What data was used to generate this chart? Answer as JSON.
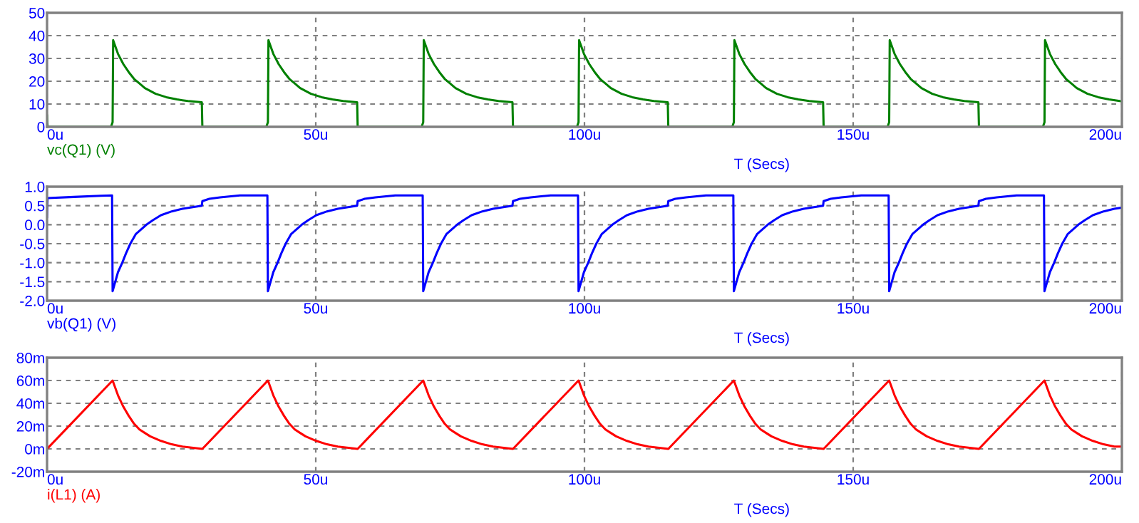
{
  "chart_data": [
    {
      "type": "line",
      "xlabel": "T (Secs)",
      "xlim": [
        0,
        200
      ],
      "xticks": [
        {
          "value": 0,
          "label": "0u"
        },
        {
          "value": 50,
          "label": "50u"
        },
        {
          "value": 100,
          "label": "100u"
        },
        {
          "value": 150,
          "label": "150u"
        },
        {
          "value": 200,
          "label": "200u"
        }
      ],
      "ylim": [
        0,
        50
      ],
      "yticks": [
        0,
        10,
        20,
        30,
        40,
        50
      ],
      "grid": true,
      "series": [
        {
          "name": "vc(Q1) (V)",
          "color": "#008000",
          "x": [
            0,
            0.1,
            11.9,
            12.2,
            12.3,
            13.2,
            14.2,
            15.2,
            16.2,
            17.2,
            18.2,
            20.2,
            22.2,
            24.2,
            26.2,
            28.8,
            28.9,
            40.8,
            41.1,
            41.2,
            42.1,
            43.1,
            44.1,
            45.1,
            46.1,
            47.1,
            49.1,
            51.1,
            53.1,
            55.1,
            57.7,
            57.8,
            69.7,
            70.0,
            70.1,
            71.0,
            72.0,
            73.0,
            74.0,
            75.0,
            76.0,
            78.0,
            80.0,
            82.0,
            84.0,
            86.6,
            86.7,
            98.6,
            98.9,
            99.0,
            99.9,
            100.9,
            101.9,
            102.9,
            103.9,
            104.9,
            106.9,
            108.9,
            110.9,
            112.9,
            115.5,
            115.6,
            127.5,
            127.8,
            127.9,
            128.8,
            129.8,
            130.8,
            131.8,
            132.8,
            133.8,
            135.8,
            137.8,
            139.8,
            141.8,
            144.4,
            144.5,
            156.4,
            156.7,
            156.8,
            157.7,
            158.7,
            159.7,
            160.7,
            161.7,
            162.7,
            164.7,
            166.7,
            168.7,
            170.7,
            173.3,
            173.4,
            185.3,
            185.6,
            185.7,
            186.6,
            187.6,
            188.6,
            189.6,
            190.6,
            191.6,
            193.6,
            195.6,
            197.6,
            199.6,
            200
          ],
          "values": [
            5,
            0,
            0,
            2,
            38,
            32,
            27.5,
            24,
            21,
            19,
            17,
            14.5,
            13,
            12,
            11.3,
            10.8,
            0,
            0,
            2,
            38,
            32,
            27.5,
            24,
            21,
            19,
            17,
            14.5,
            13,
            12,
            11.3,
            10.8,
            0,
            0,
            2,
            38,
            32,
            27.5,
            24,
            21,
            19,
            17,
            14.5,
            13,
            12,
            11.3,
            10.8,
            0,
            0,
            2,
            38,
            32,
            27.5,
            24,
            21,
            19,
            17,
            14.5,
            13,
            12,
            11.3,
            10.8,
            0,
            0,
            2,
            38,
            32,
            27.5,
            24,
            21,
            19,
            17,
            14.5,
            13,
            12,
            11.3,
            10.8,
            0,
            0,
            2,
            38,
            32,
            27.5,
            24,
            21,
            19,
            17,
            14.5,
            13,
            12,
            11.3,
            10.8,
            0,
            0,
            2,
            38,
            32,
            27.5,
            24,
            21,
            19,
            17,
            14.5,
            13,
            12,
            11.3,
            11.2
          ]
        }
      ]
    },
    {
      "type": "line",
      "xlabel": "T (Secs)",
      "xlim": [
        0,
        200
      ],
      "xticks": [
        {
          "value": 0,
          "label": "0u"
        },
        {
          "value": 50,
          "label": "50u"
        },
        {
          "value": 100,
          "label": "100u"
        },
        {
          "value": 150,
          "label": "150u"
        },
        {
          "value": 200,
          "label": "200u"
        }
      ],
      "ylim": [
        -2,
        1
      ],
      "yticks": [
        {
          "value": -2,
          "label": "-2.0"
        },
        {
          "value": -1.5,
          "label": "-1.5"
        },
        {
          "value": -1,
          "label": "-1.0"
        },
        {
          "value": -0.5,
          "label": "-0.5"
        },
        {
          "value": 0,
          "label": "0.0"
        },
        {
          "value": 0.5,
          "label": "0.5"
        },
        {
          "value": 1,
          "label": "1.0"
        }
      ],
      "grid": true,
      "series": [
        {
          "name": "vb(Q1) (V)",
          "color": "#0000ff",
          "x": [
            0,
            0.1,
            5,
            10,
            12.1,
            12.2,
            12.5,
            13.2,
            14.0,
            14.7,
            15.5,
            16.5,
            18.5,
            19.7,
            21.2,
            23.2,
            25.2,
            28.8,
            28.9,
            30.2,
            32.2,
            35.9,
            41.0,
            41.1,
            41.4,
            42.1,
            42.9,
            43.6,
            44.4,
            45.4,
            47.4,
            48.6,
            50.1,
            52.1,
            54.1,
            57.7,
            57.8,
            59.1,
            61.1,
            64.8,
            69.9,
            70.0,
            70.3,
            71.0,
            71.8,
            72.5,
            73.3,
            74.3,
            76.3,
            77.5,
            79.0,
            81.0,
            83.0,
            86.6,
            86.7,
            88.0,
            90.0,
            93.7,
            98.8,
            98.9,
            99.2,
            99.9,
            100.7,
            101.4,
            102.2,
            103.2,
            105.2,
            106.4,
            107.9,
            109.9,
            111.9,
            115.5,
            115.6,
            116.9,
            118.9,
            122.6,
            127.7,
            127.8,
            128.1,
            128.8,
            129.6,
            130.3,
            131.1,
            132.1,
            134.1,
            135.3,
            136.8,
            138.8,
            140.8,
            144.4,
            144.5,
            145.8,
            147.8,
            151.5,
            156.6,
            156.7,
            157.0,
            157.7,
            158.5,
            159.2,
            160.0,
            161.0,
            163.0,
            164.2,
            165.7,
            167.7,
            169.7,
            173.3,
            173.4,
            174.7,
            176.7,
            180.4,
            185.5,
            185.6,
            185.9,
            186.6,
            187.4,
            188.1,
            188.9,
            189.9,
            191.9,
            193.1,
            194.6,
            196.6,
            198.6,
            200
          ],
          "values": [
            0.2,
            0.7,
            0.73,
            0.76,
            0.77,
            -1.75,
            -1.6,
            -1.25,
            -1.0,
            -0.75,
            -0.5,
            -0.25,
            0,
            0.12,
            0.25,
            0.35,
            0.42,
            0.5,
            0.62,
            0.68,
            0.72,
            0.77,
            0.77,
            -1.75,
            -1.6,
            -1.25,
            -1.0,
            -0.75,
            -0.5,
            -0.25,
            0,
            0.12,
            0.25,
            0.35,
            0.42,
            0.5,
            0.62,
            0.68,
            0.72,
            0.77,
            0.77,
            -1.75,
            -1.6,
            -1.25,
            -1.0,
            -0.75,
            -0.5,
            -0.25,
            0,
            0.12,
            0.25,
            0.35,
            0.42,
            0.5,
            0.62,
            0.68,
            0.72,
            0.77,
            0.77,
            -1.75,
            -1.6,
            -1.25,
            -1.0,
            -0.75,
            -0.5,
            -0.25,
            0,
            0.12,
            0.25,
            0.35,
            0.42,
            0.5,
            0.62,
            0.68,
            0.72,
            0.77,
            0.77,
            -1.75,
            -1.6,
            -1.25,
            -1.0,
            -0.75,
            -0.5,
            -0.25,
            0,
            0.12,
            0.25,
            0.35,
            0.42,
            0.5,
            0.62,
            0.68,
            0.72,
            0.77,
            0.77,
            -1.75,
            -1.6,
            -1.25,
            -1.0,
            -0.75,
            -0.5,
            -0.25,
            0,
            0.12,
            0.25,
            0.35,
            0.42,
            0.5,
            0.62,
            0.68,
            0.72,
            0.77,
            0.77,
            -1.75,
            -1.6,
            -1.25,
            -1.0,
            -0.75,
            -0.5,
            -0.25,
            0,
            0.12,
            0.25,
            0.35,
            0.42,
            0.45
          ]
        }
      ]
    },
    {
      "type": "line",
      "xlabel": "T (Secs)",
      "xlim": [
        0,
        200
      ],
      "xticks": [
        {
          "value": 0,
          "label": "0u"
        },
        {
          "value": 50,
          "label": "50u"
        },
        {
          "value": 100,
          "label": "100u"
        },
        {
          "value": 150,
          "label": "150u"
        },
        {
          "value": 200,
          "label": "200u"
        }
      ],
      "ylim": [
        -20,
        80
      ],
      "yticks": [
        {
          "value": -20,
          "label": "-20m"
        },
        {
          "value": 0,
          "label": "0m"
        },
        {
          "value": 20,
          "label": "20m"
        },
        {
          "value": 40,
          "label": "40m"
        },
        {
          "value": 60,
          "label": "60m"
        },
        {
          "value": 80,
          "label": "80m"
        }
      ],
      "grid": true,
      "series": [
        {
          "name": "i(L1) (A)",
          "color": "#ff0000",
          "x": [
            0,
            12.2,
            13.2,
            14.2,
            15.2,
            16.2,
            17.2,
            18.2,
            19.2,
            21.2,
            23.2,
            25.2,
            27.2,
            28.9,
            41.1,
            42.1,
            43.1,
            44.1,
            45.1,
            46.1,
            47.1,
            48.1,
            50.1,
            52.1,
            54.1,
            56.1,
            57.8,
            70.0,
            71.0,
            72.0,
            73.0,
            74.0,
            75.0,
            76.0,
            77.0,
            79.0,
            81.0,
            83.0,
            85.0,
            86.7,
            98.9,
            99.9,
            100.9,
            101.9,
            102.9,
            103.9,
            104.9,
            105.9,
            107.9,
            109.9,
            111.9,
            113.9,
            115.6,
            127.8,
            128.8,
            129.8,
            130.8,
            131.8,
            132.8,
            133.8,
            134.8,
            136.8,
            138.8,
            140.8,
            142.8,
            144.5,
            156.7,
            157.7,
            158.7,
            159.7,
            160.7,
            161.7,
            162.7,
            163.7,
            165.7,
            167.7,
            169.7,
            171.7,
            173.4,
            185.6,
            186.6,
            187.6,
            188.6,
            189.6,
            190.6,
            191.6,
            192.6,
            194.6,
            196.6,
            198.6,
            200
          ],
          "values": [
            0,
            60,
            47,
            37,
            29,
            22,
            17,
            14,
            11,
            7,
            4,
            2,
            1,
            0,
            60,
            47,
            37,
            29,
            22,
            17,
            14,
            11,
            7,
            4,
            2,
            1,
            0,
            60,
            47,
            37,
            29,
            22,
            17,
            14,
            11,
            7,
            4,
            2,
            1,
            0,
            60,
            47,
            37,
            29,
            22,
            17,
            14,
            11,
            7,
            4,
            2,
            1,
            0,
            60,
            47,
            37,
            29,
            22,
            17,
            14,
            11,
            7,
            4,
            2,
            1,
            0,
            60,
            47,
            37,
            29,
            22,
            17,
            14,
            11,
            7,
            4,
            2,
            1,
            0,
            60,
            47,
            37,
            29,
            22,
            17,
            14,
            11,
            7,
            4,
            2,
            2
          ]
        }
      ]
    }
  ]
}
